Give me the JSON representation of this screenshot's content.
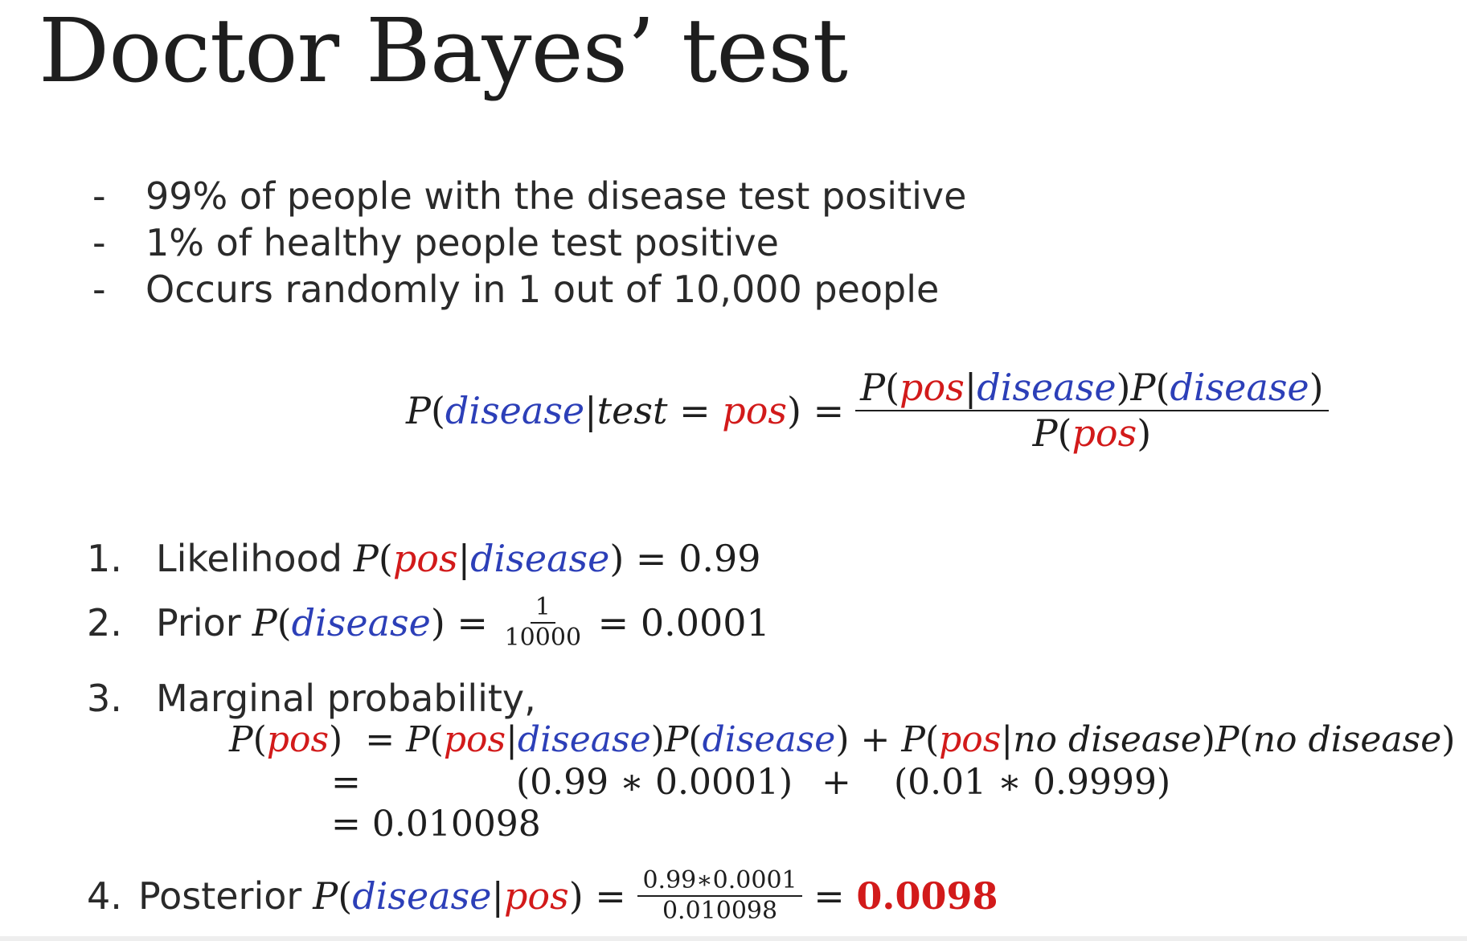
{
  "title": "Doctor Bayes’ test",
  "bullets": [
    {
      "marker": "-",
      "text": "99% of people with the disease test positive"
    },
    {
      "marker": "-",
      "text": "1% of healthy people test positive"
    },
    {
      "marker": "-",
      "text": "Occurs randomly in 1 out of 10,000 people"
    }
  ],
  "formula": {
    "P": "P",
    "disease": "disease",
    "test": "test",
    "pos": "pos",
    "no_disease": "no disease",
    "bar": "|",
    "lp": "(",
    "rp": ")",
    "eq": "=",
    "plus": "+"
  },
  "steps": [
    {
      "number": "1.",
      "label": "Likelihood",
      "value": "= 0.99"
    },
    {
      "number": "2.",
      "label": "Prior",
      "num": "1",
      "den": "10000",
      "value": "= 0.0001"
    },
    {
      "number": "3.",
      "label": "Marginal probability,",
      "term1": "(0.99 ∗ 0.0001)",
      "term2": "(0.01 ∗ 0.9999)",
      "result": "= 0.010098"
    },
    {
      "number": "4.",
      "label": "Posterior",
      "num": "0.99∗0.0001",
      "den": "0.010098",
      "eq": "=",
      "value": "0.0098"
    }
  ],
  "colors": {
    "accent_red": "#d21a1a",
    "accent_blue": "#2c3fb8",
    "text": "#1e1e1e"
  }
}
